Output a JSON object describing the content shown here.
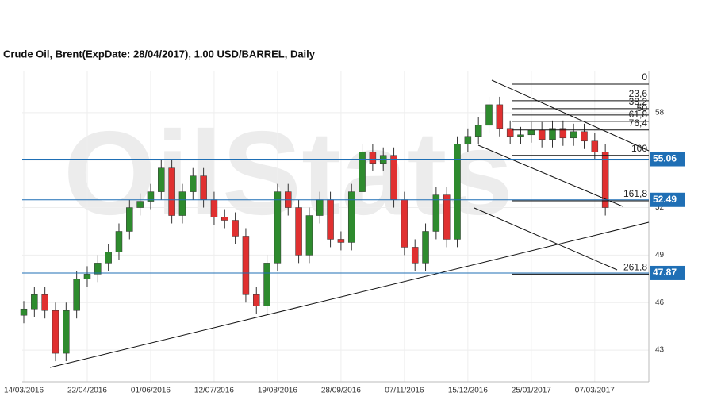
{
  "chart_data": {
    "type": "candlestick",
    "title": "Crude Oil, Brent(ExpDate: 28/04/2017), 1.00 USD/BARREL, Daily",
    "watermark": "OilStats",
    "categories": [
      "14/03/2016",
      null,
      null,
      null,
      null,
      null,
      "22/04/2016",
      null,
      null,
      null,
      null,
      null,
      "01/06/2016",
      null,
      null,
      null,
      null,
      null,
      "12/07/2016",
      null,
      null,
      null,
      null,
      null,
      "19/08/2016",
      null,
      null,
      null,
      null,
      null,
      "28/09/2016",
      null,
      null,
      null,
      null,
      null,
      "07/11/2016",
      null,
      null,
      null,
      null,
      null,
      "15/12/2016",
      null,
      null,
      null,
      null,
      null,
      "25/01/2017",
      null,
      null,
      null,
      null,
      null,
      "07/03/2017",
      null
    ],
    "open": [
      45.2,
      45.6,
      46.5,
      45.5,
      42.8,
      45.5,
      47.5,
      47.8,
      48.5,
      49.2,
      50.5,
      52.0,
      52.4,
      53.0,
      54.5,
      51.5,
      53.0,
      54.0,
      52.5,
      51.4,
      51.2,
      50.2,
      46.5,
      45.8,
      48.5,
      53.0,
      52.0,
      49.0,
      51.5,
      52.5,
      50.0,
      49.8,
      53.0,
      55.5,
      54.8,
      55.3,
      52.5,
      49.5,
      48.5,
      50.5,
      52.8,
      50.0,
      56.0,
      56.5,
      57.2,
      58.5,
      57.0,
      56.5,
      56.6,
      56.9,
      56.3,
      57.0,
      56.4,
      56.8,
      56.2,
      55.5
    ],
    "high": [
      46.1,
      47.0,
      47.0,
      46.0,
      46.0,
      48.0,
      48.3,
      49.0,
      49.7,
      51.0,
      52.5,
      52.9,
      53.5,
      55.0,
      55.0,
      53.5,
      54.5,
      54.5,
      53.0,
      51.9,
      51.7,
      50.7,
      47.0,
      49.0,
      53.5,
      53.5,
      52.5,
      52.0,
      53.0,
      53.0,
      50.5,
      53.5,
      56.0,
      56.0,
      55.8,
      55.8,
      53.0,
      50.0,
      51.0,
      53.3,
      53.3,
      56.5,
      57.0,
      57.7,
      59.0,
      59.0,
      57.5,
      57.1,
      57.4,
      57.4,
      57.5,
      57.5,
      57.3,
      57.3,
      56.7,
      56.0
    ],
    "low": [
      44.7,
      45.1,
      45.0,
      42.3,
      42.3,
      45.0,
      47.0,
      47.3,
      48.0,
      48.7,
      50.0,
      51.5,
      51.9,
      52.5,
      51.0,
      51.0,
      52.5,
      52.0,
      50.9,
      50.7,
      49.7,
      46.0,
      45.3,
      45.3,
      48.0,
      51.5,
      48.5,
      48.5,
      51.0,
      49.5,
      49.3,
      49.3,
      52.5,
      54.3,
      54.3,
      52.0,
      49.0,
      48.0,
      48.0,
      50.0,
      49.5,
      49.5,
      55.5,
      56.0,
      56.7,
      56.5,
      56.0,
      56.0,
      56.1,
      55.8,
      55.8,
      55.9,
      55.9,
      55.7,
      55.0,
      51.5
    ],
    "close": [
      45.6,
      46.5,
      45.5,
      42.8,
      45.5,
      47.5,
      47.8,
      48.5,
      49.2,
      50.5,
      52.0,
      52.4,
      53.0,
      54.5,
      51.5,
      53.0,
      54.0,
      52.5,
      51.4,
      51.2,
      50.2,
      46.5,
      45.8,
      48.5,
      53.0,
      52.0,
      49.0,
      51.5,
      52.5,
      50.0,
      49.8,
      53.0,
      55.5,
      54.8,
      55.3,
      52.5,
      49.5,
      48.5,
      50.5,
      52.8,
      50.0,
      56.0,
      56.5,
      57.2,
      58.5,
      57.0,
      56.5,
      56.6,
      56.9,
      56.3,
      57.0,
      56.4,
      56.8,
      56.2,
      55.5,
      52.0
    ],
    "up_color": "#2e8b2e",
    "down_color": "#e03030",
    "ylim": [
      41.0,
      60.6
    ],
    "yticks": [
      43,
      46,
      49,
      52,
      55,
      58
    ],
    "grid": true,
    "levels": [
      55.06,
      52.49,
      47.87
    ],
    "level_color": "#1f6fb5",
    "fibonacci": [
      {
        "label": "0",
        "value": 59.8
      },
      {
        "label": "23,6",
        "value": 58.75
      },
      {
        "label": "38,2",
        "value": 58.25
      },
      {
        "label": "50",
        "value": 57.85
      },
      {
        "label": "61,8",
        "value": 57.45
      },
      {
        "label": "76,4",
        "value": 56.9
      },
      {
        "label": "100",
        "value": 55.3
      },
      {
        "label": "161,8",
        "value": 52.43
      },
      {
        "label": "261,8",
        "value": 47.8
      }
    ]
  }
}
